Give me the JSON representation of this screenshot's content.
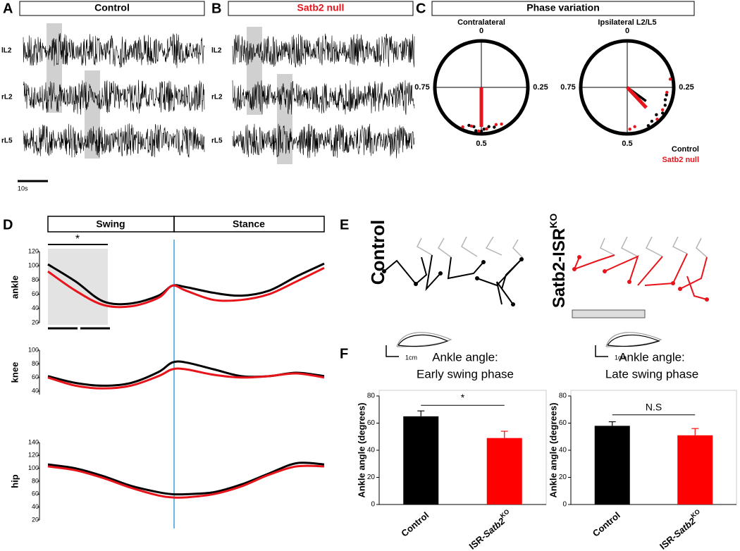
{
  "panels": {
    "A": {
      "letter": "A",
      "title": "Control",
      "traces": [
        "lL2",
        "rL2",
        "rL5"
      ],
      "scale": "10s"
    },
    "B": {
      "letter": "B",
      "title": "Satb2 null",
      "traces": [
        "lL2",
        "rL2",
        "rL5"
      ]
    },
    "C": {
      "letter": "C",
      "title": "Phase variation"
    },
    "D": {
      "letter": "D",
      "phases": [
        "Swing",
        "Stance"
      ],
      "star": "*"
    },
    "E": {
      "letter": "E",
      "control": "Control",
      "ko": "Satb2-ISR",
      "ko_sup": "KO",
      "scale": "1cm"
    },
    "F": {
      "letter": "F"
    }
  },
  "chart_data": [
    {
      "type": "polar",
      "title": "Contralateral",
      "ticks": [
        0,
        0.25,
        0.5,
        0.75
      ],
      "series": [
        {
          "color": "#000000",
          "phases": [
            0.47,
            0.49,
            0.52,
            0.55,
            0.45,
            0.5,
            0.53,
            0.48
          ],
          "vector": {
            "phase": 0.5,
            "length": 0.83
          }
        },
        {
          "color": "#e8141b",
          "phases": [
            0.44,
            0.48,
            0.51,
            0.54,
            0.42,
            0.57
          ],
          "vector": {
            "phase": 0.5,
            "length": 0.85
          }
        }
      ]
    },
    {
      "type": "polar",
      "title": "Ipsilateral L2/L5",
      "ticks": [
        0,
        0.25,
        0.5,
        0.75
      ],
      "series": [
        {
          "name": "Control",
          "color": "#000000",
          "phases": [
            0.3,
            0.32,
            0.35,
            0.37,
            0.4,
            0.42,
            0.28
          ],
          "vector": {
            "phase": 0.35,
            "length": 0.5
          }
        },
        {
          "name": "Satb2 null",
          "color": "#e8141b",
          "phases": [
            0.27,
            0.34,
            0.38,
            0.47,
            0.49,
            0.22
          ],
          "vector": {
            "phase": 0.38,
            "length": 0.6
          }
        }
      ]
    },
    {
      "type": "line",
      "ylabel": "ankle",
      "ylim": [
        20,
        120
      ],
      "yticks": [
        20,
        40,
        60,
        80,
        100,
        120
      ],
      "x": [
        0,
        0.1,
        0.2,
        0.3,
        0.4,
        0.45,
        0.5,
        0.6,
        0.7,
        0.8,
        0.9,
        1
      ],
      "xlim": [
        0,
        1
      ],
      "series": [
        {
          "color": "#000000",
          "values": [
            102,
            78,
            50,
            47,
            58,
            72,
            70,
            62,
            58,
            65,
            85,
            103
          ]
        },
        {
          "color": "#e8141b",
          "values": [
            92,
            65,
            45,
            43,
            55,
            72,
            65,
            52,
            52,
            60,
            78,
            97
          ]
        }
      ]
    },
    {
      "type": "line",
      "ylabel": "knee",
      "ylim": [
        35,
        100
      ],
      "yticks": [
        40,
        60,
        80,
        100
      ],
      "x": [
        0,
        0.1,
        0.2,
        0.3,
        0.4,
        0.45,
        0.5,
        0.6,
        0.7,
        0.8,
        0.9,
        1
      ],
      "xlim": [
        0,
        1
      ],
      "series": [
        {
          "color": "#000000",
          "values": [
            62,
            52,
            48,
            52,
            68,
            82,
            82,
            72,
            62,
            62,
            67,
            62
          ]
        },
        {
          "color": "#e8141b",
          "values": [
            60,
            48,
            44,
            48,
            62,
            72,
            72,
            64,
            60,
            62,
            66,
            60
          ]
        }
      ]
    },
    {
      "type": "line",
      "ylabel": "hip",
      "ylim": [
        20,
        140
      ],
      "yticks": [
        20,
        40,
        60,
        80,
        100,
        120,
        140
      ],
      "x": [
        0,
        0.1,
        0.2,
        0.3,
        0.4,
        0.45,
        0.5,
        0.6,
        0.7,
        0.8,
        0.9,
        1
      ],
      "xlim": [
        0,
        1
      ],
      "series": [
        {
          "color": "#000000",
          "values": [
            106,
            100,
            88,
            73,
            63,
            60,
            60,
            63,
            75,
            92,
            108,
            106
          ]
        },
        {
          "color": "#e8141b",
          "values": [
            103,
            97,
            85,
            70,
            58,
            55,
            55,
            60,
            72,
            90,
            103,
            103
          ]
        }
      ]
    },
    {
      "type": "bar",
      "title": "Ankle angle:",
      "subtitle": "Early swing phase",
      "ylabel": "Ankle angle (degrees)",
      "categories": [
        "Control",
        {
          "text": "ISR-",
          "italic": "Satb2",
          "sup": "KO"
        }
      ],
      "values": [
        65,
        49
      ],
      "errors": [
        4,
        5
      ],
      "colors": [
        "#000000",
        "#ff0000"
      ],
      "ylim": [
        0,
        80
      ],
      "yticks": [
        0,
        20,
        40,
        60,
        80
      ],
      "annotation": "*"
    },
    {
      "type": "bar",
      "title": "Ankle angle:",
      "subtitle": "Late swing phase",
      "ylabel": "Ankle angle (degrees)",
      "categories": [
        "Control",
        {
          "text": "ISR-",
          "italic": "Satb2",
          "sup": "KO"
        }
      ],
      "values": [
        58,
        51
      ],
      "errors": [
        3,
        5
      ],
      "colors": [
        "#000000",
        "#ff0000"
      ],
      "ylim": [
        0,
        80
      ],
      "yticks": [
        0,
        20,
        40,
        60,
        80
      ],
      "annotation": "N.S"
    }
  ]
}
